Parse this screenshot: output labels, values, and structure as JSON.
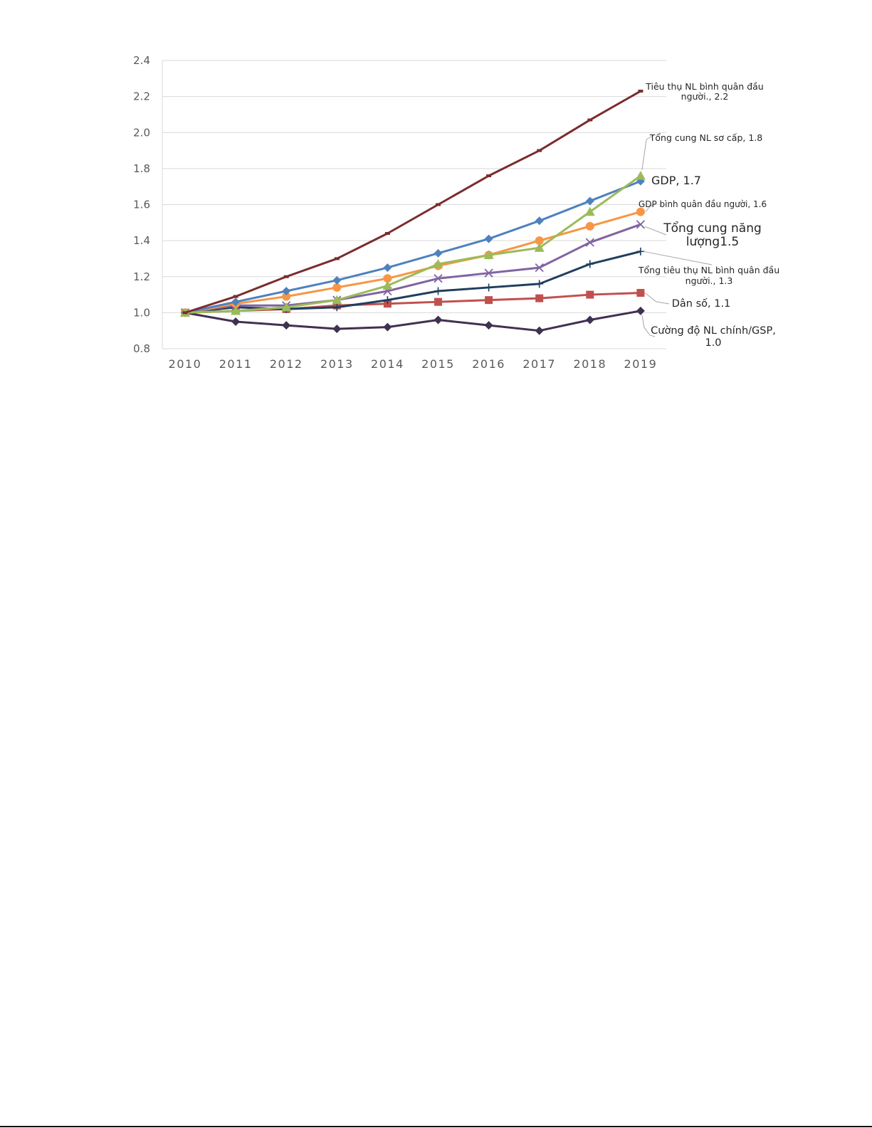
{
  "chart_data": {
    "type": "line",
    "x": [
      2010,
      2011,
      2012,
      2013,
      2014,
      2015,
      2016,
      2017,
      2018,
      2019
    ],
    "ylim": [
      0.8,
      2.4
    ],
    "yticks": [
      0.8,
      1.0,
      1.2,
      1.4,
      1.6,
      1.8,
      2.0,
      2.2,
      2.4
    ],
    "yticks_text": [
      "0.8",
      "1.0",
      "1.2",
      "1.4",
      "1.6",
      "1.8",
      "2.0",
      "2.2",
      "2.4"
    ],
    "xticks_text": [
      "2010",
      "2011",
      "2012",
      "2013",
      "2014",
      "2015",
      "2016",
      "2017",
      "2018",
      "2019"
    ],
    "grid": "horizontal",
    "legend": "none",
    "series": [
      {
        "name": "Tiêu thụ NL bình quân đầu người.",
        "label": [
          "Tiêu thụ NL bình quân đầu",
          "người., 2.2"
        ],
        "color": "#7b2c2c",
        "marker": "dash",
        "values": [
          1.0,
          1.09,
          1.2,
          1.3,
          1.44,
          1.6,
          1.76,
          1.9,
          2.07,
          2.23
        ]
      },
      {
        "name": "Tổng cung NL sơ cấp",
        "label": [
          "Tổng cung NL sơ cấp, 1.8"
        ],
        "color": "#9bbb59",
        "marker": "triangle",
        "values": [
          1.0,
          1.01,
          1.03,
          1.07,
          1.15,
          1.27,
          1.32,
          1.36,
          1.56,
          1.76
        ]
      },
      {
        "name": "GDP",
        "label": [
          "GDP, 1.7"
        ],
        "color": "#4f81bd",
        "marker": "diamond",
        "values": [
          1.0,
          1.06,
          1.12,
          1.18,
          1.25,
          1.33,
          1.41,
          1.51,
          1.62,
          1.73
        ]
      },
      {
        "name": "GDP bình quân đầu người",
        "label": [
          "GDP bình quân đầu người, 1.6"
        ],
        "color": "#f79646",
        "marker": "circle",
        "values": [
          1.0,
          1.05,
          1.09,
          1.14,
          1.19,
          1.26,
          1.32,
          1.4,
          1.48,
          1.56
        ]
      },
      {
        "name": "Tổng cung năng lượng",
        "label": [
          "Tổng cung năng",
          "lượng1.5"
        ],
        "color": "#8064a2",
        "marker": "x",
        "values": [
          1.0,
          1.04,
          1.04,
          1.07,
          1.12,
          1.19,
          1.22,
          1.25,
          1.39,
          1.49
        ]
      },
      {
        "name": "Tổng tiêu thụ NL bình quân đầu người.",
        "label": [
          "Tổng tiêu thụ NL bình quân đầu",
          "người., 1.3"
        ],
        "color": "#1f3f5f",
        "marker": "plus",
        "values": [
          1.0,
          1.03,
          1.02,
          1.03,
          1.07,
          1.12,
          1.14,
          1.16,
          1.27,
          1.34
        ]
      },
      {
        "name": "Dân số",
        "label": [
          "Dân số, 1.1"
        ],
        "color": "#c0504d",
        "marker": "square",
        "values": [
          1.0,
          1.01,
          1.02,
          1.04,
          1.05,
          1.06,
          1.07,
          1.08,
          1.1,
          1.11
        ]
      },
      {
        "name": "Cường độ NL chính/GSP",
        "label": [
          "Cường độ NL chính/GSP,",
          "1.0"
        ],
        "color": "#403152",
        "marker": "diamond",
        "values": [
          1.0,
          0.95,
          0.93,
          0.91,
          0.92,
          0.96,
          0.93,
          0.9,
          0.96,
          1.01
        ]
      }
    ]
  }
}
